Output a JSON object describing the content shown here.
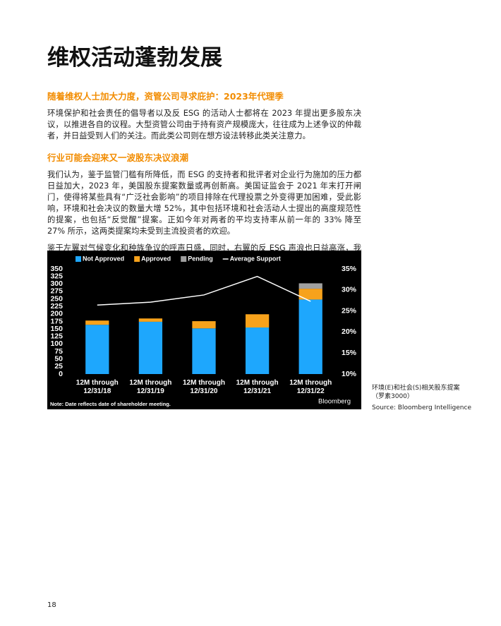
{
  "title": "维权活动蓬勃发展",
  "sections": [
    {
      "heading": "随着维权人士加大力度，资管公司寻求庇护：2023年代理季",
      "paragraphs": [
        "环境保护和社会责任的倡导者以及反 ESG 的活动人士都将在 2023 年提出更多股东决议，以推进各自的议程。大型资管公司由于持有资产规模庞大，往往成为上述争议的仲裁者，并日益受到人们的关注。而此类公司则在想方设法转移此类关注意力。"
      ]
    },
    {
      "heading": "行业可能会迎来又一波股东决议浪潮",
      "paragraphs": [
        "我们认为，鉴于监管门槛有所降低，而 ESG 的支持者和批评者对企业行为施加的压力都日益加大，2023 年，美国股东提案数量或再创新高。美国证监会于 2021 年末打开闸门，使得将某些具有“广泛社会影响”的项目排除在代理投票之外变得更加困难，受此影响，环境和社会决议的数量大增 52%，其中包括环境和社会活动人士提出的高度规范性的提案，也包括“反觉醒”提案。正如今年对两者的平均支持率从前一年的 33% 降至 27% 所示，这两类提案均未受到主流投资者的欢迎。",
        "鉴于左翼对气候变化和种族争议的呼声日盛，同时，右翼的反 ESG 声浪也日益高涨，我们预计明年此类决议仍会大量涌现。"
      ]
    }
  ],
  "chart_data": {
    "type": "bar",
    "stacked": true,
    "categories": [
      "12M through 12/31/18",
      "12M through 12/31/19",
      "12M through 12/31/20",
      "12M through 12/31/21",
      "12M through 12/31/22"
    ],
    "series": [
      {
        "name": "Not Approved",
        "color": "#1ea7fd",
        "values": [
          164,
          174,
          152,
          155,
          248
        ]
      },
      {
        "name": "Approved",
        "color": "#f7a21b",
        "values": [
          14,
          11,
          24,
          44,
          36
        ]
      },
      {
        "name": "Pending",
        "color": "#a0a0a0",
        "values": [
          0,
          0,
          0,
          0,
          18
        ]
      },
      {
        "name": "Average Support",
        "color": "#ffffff",
        "type": "line",
        "axis": "y2",
        "values": [
          26.4,
          27.1,
          28.8,
          33.2,
          27.3
        ]
      }
    ],
    "ylim": [
      0,
      350
    ],
    "yticks": [
      0,
      25,
      50,
      75,
      100,
      125,
      150,
      175,
      200,
      225,
      250,
      275,
      300,
      325,
      350
    ],
    "y2lim": [
      10,
      35
    ],
    "y2ticks": [
      {
        "value": 10,
        "label": "10%"
      },
      {
        "value": 15,
        "label": "15%"
      },
      {
        "value": 20,
        "label": "20%"
      },
      {
        "value": 25,
        "label": "25%"
      },
      {
        "value": 30,
        "label": "30%"
      },
      {
        "value": 35,
        "label": "35%"
      }
    ],
    "grid": false,
    "note": "Note: Date reflects date of shareholder meeting.",
    "brand": "Bloomberg"
  },
  "caption": {
    "title": "环境(E)和社会(S)相关股东提案（罗素3000）",
    "source": "Source: Bloomberg Intelligence"
  },
  "page_number": "18"
}
